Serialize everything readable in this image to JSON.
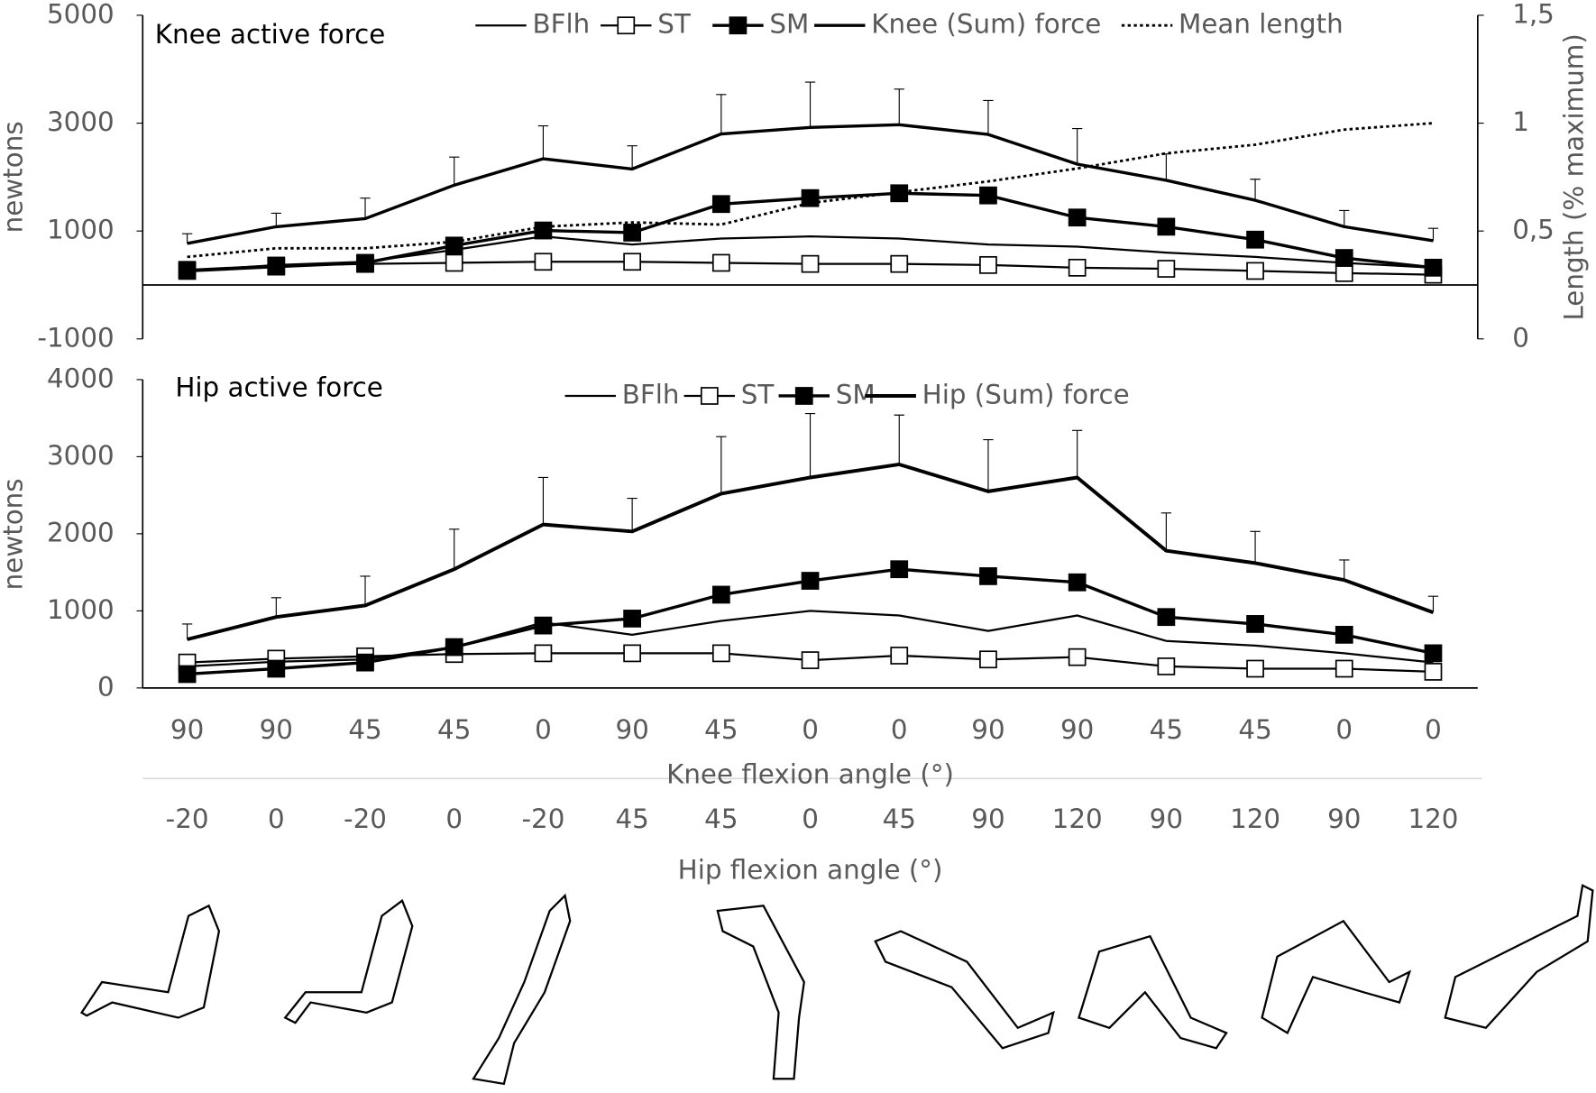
{
  "chart_data": [
    {
      "type": "line",
      "title": "Knee active force",
      "y_label": "newtons",
      "y2_label": "Length (% maximum)",
      "ylim": [
        -1000,
        5000
      ],
      "yticks": [
        -1000,
        1000,
        3000,
        5000
      ],
      "y2lim": [
        0,
        1.5
      ],
      "y2ticks": [
        0,
        {
          "value": 0.5,
          "label": "0,5"
        },
        1,
        {
          "value": 1.5,
          "label": "1,5"
        }
      ],
      "series": [
        {
          "name": "BFlh",
          "color": "#000000",
          "marker": "none",
          "width": 2,
          "values": [
            260,
            370,
            430,
            650,
            900,
            750,
            860,
            900,
            860,
            750,
            710,
            600,
            520,
            410,
            320
          ]
        },
        {
          "name": "ST",
          "color": "#000000",
          "marker": "open-square",
          "width": 2,
          "values": [
            280,
            360,
            390,
            410,
            430,
            430,
            410,
            390,
            390,
            370,
            320,
            300,
            260,
            220,
            190
          ]
        },
        {
          "name": "SM",
          "color": "#000000",
          "marker": "filled-square",
          "width": 3,
          "values": [
            260,
            340,
            410,
            730,
            1010,
            970,
            1500,
            1610,
            1700,
            1660,
            1250,
            1080,
            840,
            500,
            320
          ]
        },
        {
          "name": "Knee (Sum) force",
          "color": "#000000",
          "marker": "none",
          "width": 3,
          "values": [
            770,
            1080,
            1230,
            1850,
            2340,
            2150,
            2800,
            2920,
            2970,
            2790,
            2240,
            1940,
            1570,
            1080,
            820
          ],
          "errors": [
            180,
            250,
            380,
            520,
            610,
            430,
            730,
            840,
            660,
            630,
            660,
            490,
            390,
            300,
            230
          ]
        },
        {
          "name": "Mean length",
          "color": "#000000",
          "marker": "none",
          "width": 2.5,
          "style": "dotted",
          "axis": "y2",
          "values": [
            0.38,
            0.42,
            0.42,
            0.45,
            0.52,
            0.54,
            0.53,
            0.63,
            0.68,
            0.73,
            0.79,
            0.86,
            0.9,
            0.97,
            1.0
          ]
        }
      ]
    },
    {
      "type": "line",
      "title": "Hip active force",
      "y_label": "newtons",
      "categories": [
        90,
        90,
        45,
        45,
        0,
        90,
        45,
        0,
        0,
        90,
        90,
        45,
        45,
        0,
        0
      ],
      "x_label": "Knee flexion angle (°)",
      "categories2": [
        -20,
        0,
        -20,
        0,
        -20,
        45,
        45,
        0,
        45,
        90,
        120,
        90,
        120,
        90,
        120
      ],
      "x2_label": "Hip flexion angle (°)",
      "ylim": [
        0,
        4000
      ],
      "yticks": [
        0,
        1000,
        2000,
        3000,
        4000
      ],
      "series": [
        {
          "name": "BFlh",
          "color": "#000000",
          "marker": "none",
          "width": 2,
          "values": [
            280,
            340,
            370,
            530,
            850,
            690,
            870,
            1000,
            940,
            740,
            940,
            610,
            550,
            450,
            330
          ]
        },
        {
          "name": "ST",
          "color": "#000000",
          "marker": "open-square",
          "width": 2,
          "values": [
            330,
            380,
            410,
            440,
            450,
            450,
            450,
            360,
            420,
            370,
            400,
            280,
            250,
            250,
            210
          ]
        },
        {
          "name": "SM",
          "color": "#000000",
          "marker": "filled-square",
          "width": 3,
          "values": [
            180,
            250,
            330,
            530,
            810,
            900,
            1210,
            1390,
            1540,
            1450,
            1370,
            920,
            830,
            690,
            450
          ]
        },
        {
          "name": "Hip (Sum) force",
          "color": "#000000",
          "marker": "none",
          "width": 3.5,
          "values": [
            630,
            920,
            1070,
            1540,
            2120,
            2030,
            2520,
            2730,
            2900,
            2550,
            2730,
            1780,
            1620,
            1400,
            980
          ],
          "errors": [
            200,
            250,
            380,
            520,
            610,
            430,
            740,
            830,
            640,
            670,
            610,
            490,
            410,
            260,
            210
          ]
        }
      ]
    }
  ]
}
